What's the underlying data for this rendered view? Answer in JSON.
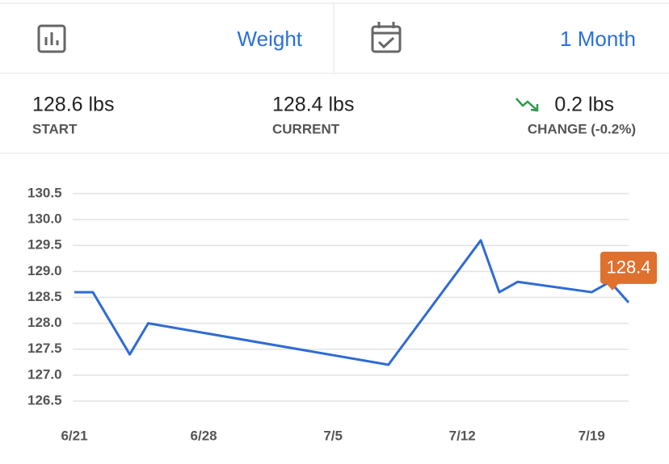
{
  "header": {
    "metric": "Weight",
    "range": "1 Month"
  },
  "stats": {
    "start": {
      "value": "128.6 lbs",
      "label": "START"
    },
    "current": {
      "value": "128.4 lbs",
      "label": "CURRENT"
    },
    "change": {
      "value": "0.2 lbs",
      "label": "CHANGE (-0.2%)"
    }
  },
  "chart_data": {
    "type": "line",
    "x": [
      0,
      1,
      3,
      4,
      17,
      22,
      23,
      24,
      28,
      29,
      30
    ],
    "values": [
      128.6,
      128.6,
      127.4,
      128.0,
      127.2,
      129.6,
      128.6,
      128.8,
      128.6,
      128.8,
      128.4
    ],
    "color": "#2f6bd4",
    "xlim": [
      0,
      30
    ],
    "xticks": [
      {
        "value": 0,
        "label": "6/21"
      },
      {
        "value": 7,
        "label": "6/28"
      },
      {
        "value": 14,
        "label": "7/5"
      },
      {
        "value": 21,
        "label": "7/12"
      },
      {
        "value": 28,
        "label": "7/19"
      }
    ],
    "ylim": [
      126.5,
      130.5
    ],
    "yticks": [
      126.5,
      {
        "value": 127,
        "label": "127.0"
      },
      127.5,
      {
        "value": 128,
        "label": "128.0"
      },
      128.5,
      {
        "value": 129,
        "label": "129.0"
      },
      129.5,
      {
        "value": 130,
        "label": "130.0"
      },
      130.5
    ],
    "grid": true
  }
}
